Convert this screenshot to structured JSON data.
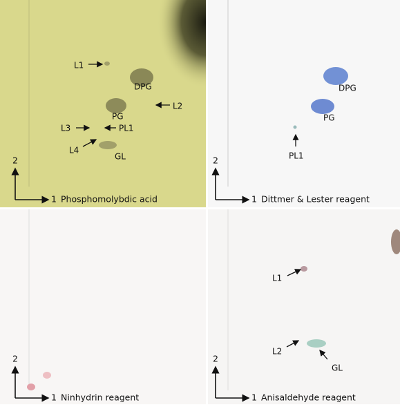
{
  "panels": [
    {
      "axis_y": "2",
      "axis_x": "1",
      "caption": "Phosphomolybdic acid",
      "labels": [
        "L1",
        "DPG",
        "L2",
        "PG",
        "L3",
        "PL1",
        "L4",
        "GL"
      ]
    },
    {
      "axis_y": "2",
      "axis_x": "1",
      "caption": "Dittmer & Lester reagent",
      "labels": [
        "DPG",
        "PG",
        "PL1"
      ]
    },
    {
      "axis_y": "2",
      "axis_x": "1",
      "caption": "Ninhydrin reagent",
      "labels": []
    },
    {
      "axis_y": "2",
      "axis_x": "1",
      "caption": "Anisaldehyde reagent",
      "labels": [
        "L1",
        "L2",
        "GL"
      ]
    }
  ]
}
